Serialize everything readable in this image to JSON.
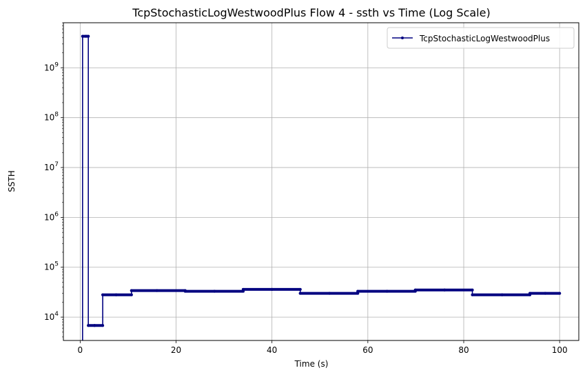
{
  "chart_data": {
    "type": "line",
    "title": "TcpStochasticLogWestwoodPlus Flow 4 - ssth vs Time (Log Scale)",
    "xlabel": "Time (s)",
    "ylabel": "SSTH",
    "yscale": "log",
    "xlim": [
      -3.5,
      104
    ],
    "ylim": [
      3400,
      8000000000
    ],
    "xticks": [
      0,
      20,
      40,
      60,
      80,
      100
    ],
    "xtick_labels": [
      "0",
      "20",
      "40",
      "60",
      "80",
      "100"
    ],
    "yticks": [
      10000,
      100000,
      1000000,
      10000000,
      100000000,
      1000000000
    ],
    "ytick_labels": [
      {
        "base": "10",
        "exp": "4"
      },
      {
        "base": "10",
        "exp": "5"
      },
      {
        "base": "10",
        "exp": "6"
      },
      {
        "base": "10",
        "exp": "7"
      },
      {
        "base": "10",
        "exp": "8"
      },
      {
        "base": "10",
        "exp": "9"
      }
    ],
    "grid": true,
    "legend_position": "upper right",
    "series": [
      {
        "name": "TcpStochasticLogWestwoodPlus",
        "color": "#000080",
        "marker": "point",
        "x": [
          0.5,
          0.5,
          1.2,
          1.7,
          1.7,
          3.0,
          4.7,
          4.7,
          7.5,
          10.7,
          10.7,
          16.0,
          21.9,
          21.9,
          28.0,
          34.0,
          34.0,
          40.0,
          45.9,
          45.9,
          52.0,
          57.9,
          57.9,
          64.0,
          69.9,
          69.9,
          76.0,
          81.8,
          81.8,
          88.0,
          93.8,
          93.8,
          97.0,
          100.0
        ],
        "y": [
          2000,
          4290000000,
          4290000000,
          4290000000,
          6800,
          6800,
          6800,
          28000,
          28000,
          28000,
          34000,
          34000,
          34000,
          33000,
          33000,
          33000,
          36000,
          36000,
          36000,
          30000,
          30000,
          30000,
          33000,
          33000,
          33000,
          35000,
          35000,
          35000,
          28000,
          28000,
          28000,
          30000,
          30000,
          30000
        ]
      }
    ]
  }
}
